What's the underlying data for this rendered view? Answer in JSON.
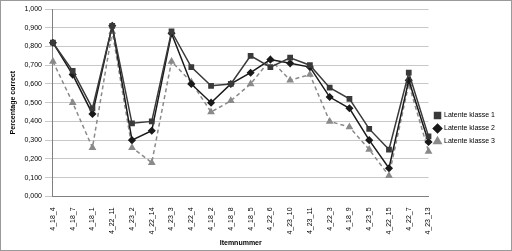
{
  "chart_data": {
    "type": "line",
    "x_label": "Itemnummer",
    "y_label": "Percentage correct",
    "categories": [
      "4_18_4",
      "4_18_7",
      "4_18_1",
      "4_22_11",
      "4_23_2",
      "4_22_14",
      "4_23_3",
      "4_22_4",
      "4_18_2",
      "4_18_8",
      "4_18_5",
      "4_22_6",
      "4_23_10",
      "4_23_11",
      "4_22_3",
      "4_18_9",
      "4_23_5",
      "4_22_15",
      "4_22_7",
      "4_23_13"
    ],
    "series": [
      {
        "name": "Latente klasse 1",
        "color": "#3a3a3a",
        "marker": "square",
        "line_style": "solid",
        "values": [
          0.82,
          0.67,
          0.47,
          0.91,
          0.39,
          0.4,
          0.88,
          0.69,
          0.59,
          0.6,
          0.75,
          0.69,
          0.74,
          0.7,
          0.58,
          0.52,
          0.36,
          0.25,
          0.66,
          0.32
        ]
      },
      {
        "name": "Latente klasse 2",
        "color": "#1a1a1a",
        "marker": "diamond",
        "line_style": "solid",
        "values": [
          0.82,
          0.65,
          0.44,
          0.91,
          0.3,
          0.35,
          0.87,
          0.6,
          0.5,
          0.6,
          0.66,
          0.73,
          0.71,
          0.69,
          0.53,
          0.47,
          0.3,
          0.15,
          0.62,
          0.29
        ]
      },
      {
        "name": "Latente klasse 3",
        "color": "#8a8a8a",
        "marker": "triangle",
        "line_style": "dashed",
        "values": [
          0.72,
          0.5,
          0.26,
          0.88,
          0.26,
          0.18,
          0.72,
          0.61,
          0.45,
          0.51,
          0.6,
          0.73,
          0.62,
          0.65,
          0.4,
          0.37,
          0.25,
          0.11,
          0.6,
          0.24
        ]
      }
    ],
    "ylim": [
      0,
      1
    ],
    "yticks": [
      {
        "value": 0,
        "label": "0,000"
      },
      {
        "value": 0.1,
        "label": "0,100"
      },
      {
        "value": 0.2,
        "label": "0,200"
      },
      {
        "value": 0.3,
        "label": "0,300"
      },
      {
        "value": 0.4,
        "label": "0,400"
      },
      {
        "value": 0.5,
        "label": "0,500"
      },
      {
        "value": 0.6,
        "label": "0,600"
      },
      {
        "value": 0.7,
        "label": "0,700"
      },
      {
        "value": 0.8,
        "label": "0,800"
      },
      {
        "value": 0.9,
        "label": "0,900"
      },
      {
        "value": 1,
        "label": "1,000"
      }
    ],
    "grid": true,
    "legend": "right"
  }
}
